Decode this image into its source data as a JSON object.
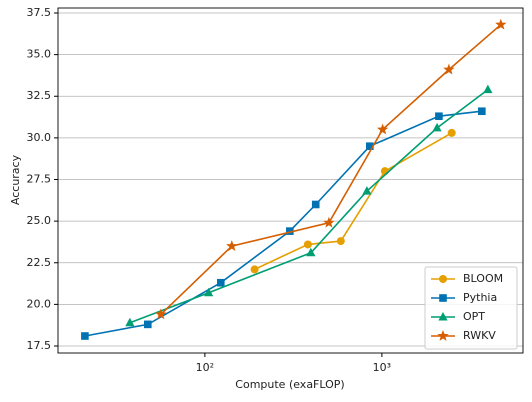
{
  "chart_data": {
    "type": "line",
    "x_scale": "log",
    "grid": "y",
    "legend": "lower right",
    "xlabel": "Compute (exaFLOP)",
    "ylabel": "Accuracy",
    "xlim": [
      14.8,
      6270
    ],
    "ylim": [
      17.08,
      37.8
    ],
    "xticks": [
      {
        "value": 100,
        "label": "10²"
      },
      {
        "value": 1000,
        "label": "10³"
      }
    ],
    "yticks": [
      17.5,
      {
        "value": 20,
        "label": "20.0"
      },
      22.5,
      {
        "value": 25,
        "label": "25.0"
      },
      27.5,
      {
        "value": 30,
        "label": "30.0"
      },
      32.5,
      {
        "value": 35,
        "label": "35.0"
      },
      37.5
    ],
    "series": [
      {
        "name": "BLOOM",
        "color": "#e69f00",
        "marker": "circle",
        "x": [
          191,
          382,
          586,
          1040,
          2480
        ],
        "values": [
          22.1,
          23.6,
          23.8,
          28.0,
          30.3
        ]
      },
      {
        "name": "Pythia",
        "color": "#0072b2",
        "marker": "square",
        "x": [
          21,
          47.6,
          123,
          302,
          423,
          855,
          2100,
          3670
        ],
        "values": [
          18.1,
          18.8,
          21.3,
          24.4,
          26.0,
          29.5,
          31.3,
          31.6
        ]
      },
      {
        "name": "OPT",
        "color": "#009e73",
        "marker": "triangle",
        "x": [
          37.7,
          105,
          397,
          823,
          2050,
          3970
        ],
        "values": [
          18.9,
          20.7,
          23.1,
          26.8,
          30.6,
          32.9
        ]
      },
      {
        "name": "RWKV",
        "color": "#d55e00",
        "marker": "star",
        "x": [
          56.4,
          142,
          502,
          1010,
          2390,
          4700
        ],
        "values": [
          19.4,
          23.5,
          24.9,
          30.5,
          34.1,
          36.8
        ]
      }
    ]
  }
}
